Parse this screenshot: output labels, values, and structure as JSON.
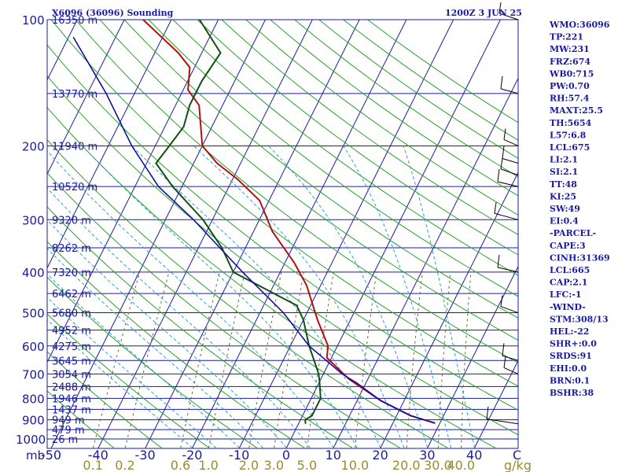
{
  "header": {
    "station": "X6096 (36096) Sounding",
    "time": "1200Z  3 JUN 25"
  },
  "indices": [
    "WMO:36096",
    "TP:221",
    "MW:231",
    "FRZ:674",
    "WB0:715",
    "PW:0.70",
    "RH:57.4",
    "MAXT:25.5",
    "TH:5654",
    "L57:6.8",
    "LCL:675",
    "LI:2.1",
    "SI:2.1",
    "TT:48",
    "KI:25",
    "SW:49",
    "EI:0.4",
    "-PARCEL-",
    "CAPE:3",
    "CINH:31369",
    "LCL:665",
    "CAP:2.1",
    "LFC:-1",
    "-WIND-",
    "STM:308/13",
    "HEL:-22",
    "SHR+:0.0",
    "SRDS:91",
    "EHI:0.0",
    "BRN:0.1",
    "BSHR:38"
  ],
  "colors": {
    "frame": "#1a1aa0",
    "isobar": "#1a1aa0",
    "isotherm": "#1a1aa0",
    "dry_adiabat": "#2aa02a",
    "moist_adiabat": "#2aa0d0",
    "mixing_ratio": "#6a6a30",
    "temperature": "#b01010",
    "dewpoint": "#105010",
    "parcel": "#1010a0",
    "wind": "#000000",
    "wlabel": "#9a8a30"
  },
  "chart_data": {
    "type": "line",
    "title": "X6096 (36096) Sounding",
    "subtitle": "1200Z  3 JUN 25",
    "y_scale": "log-pressure",
    "ylim": [
      1000,
      100
    ],
    "xlim": [
      -50,
      50
    ],
    "pressure_ticks": [
      100,
      200,
      300,
      400,
      500,
      600,
      700,
      800,
      900,
      1000
    ],
    "pressure_unit": "mb",
    "temp_ticks": [
      -50,
      -40,
      -30,
      -20,
      -10,
      0,
      10,
      20,
      30,
      40
    ],
    "temp_unit": "C",
    "mixing_ratio_ticks": [
      "0.1",
      "0.2",
      "0.6",
      "1.0",
      "2.0",
      "3.0",
      "5.0",
      "10.0",
      "20.0",
      "30.0",
      "40.0"
    ],
    "mixing_ratio_unit": "g/kg",
    "height_labels": [
      {
        "p": 100,
        "label": "16350 m"
      },
      {
        "p": 150,
        "label": "13770 m"
      },
      {
        "p": 200,
        "label": "11940 m"
      },
      {
        "p": 250,
        "label": "10520 m"
      },
      {
        "p": 300,
        "label": "9320 m"
      },
      {
        "p": 350,
        "label": "8262 m"
      },
      {
        "p": 400,
        "label": "7320 m"
      },
      {
        "p": 450,
        "label": "6462 m"
      },
      {
        "p": 500,
        "label": "5680 m"
      },
      {
        "p": 550,
        "label": "4952 m"
      },
      {
        "p": 600,
        "label": "4275 m"
      },
      {
        "p": 650,
        "label": "3645 m"
      },
      {
        "p": 700,
        "label": "3054 m"
      },
      {
        "p": 750,
        "label": "2488 m"
      },
      {
        "p": 800,
        "label": "1946 m"
      },
      {
        "p": 850,
        "label": "1437 m"
      },
      {
        "p": 900,
        "label": "949 m"
      },
      {
        "p": 950,
        "label": "479 m"
      },
      {
        "p": 1000,
        "label": "26 m"
      }
    ],
    "series": [
      {
        "key": "temperature",
        "points": [
          [
            917,
            29
          ],
          [
            880,
            23
          ],
          [
            810,
            15
          ],
          [
            720,
            6
          ],
          [
            640,
            -1
          ],
          [
            600,
            -2
          ],
          [
            520,
            -7
          ],
          [
            430,
            -13
          ],
          [
            380,
            -18
          ],
          [
            320,
            -26
          ],
          [
            270,
            -32
          ],
          [
            240,
            -39
          ],
          [
            220,
            -45
          ],
          [
            200,
            -50
          ],
          [
            160,
            -55
          ],
          [
            147,
            -59
          ],
          [
            130,
            -61
          ],
          [
            120,
            -65
          ],
          [
            100,
            -76
          ]
        ]
      },
      {
        "key": "dewpoint",
        "points": [
          [
            920,
            1.5
          ],
          [
            900,
            1
          ],
          [
            880,
            2
          ],
          [
            800,
            2
          ],
          [
            730,
            0
          ],
          [
            700,
            -1
          ],
          [
            600,
            -6
          ],
          [
            520,
            -10
          ],
          [
            480,
            -13
          ],
          [
            460,
            -17
          ],
          [
            400,
            -30
          ],
          [
            350,
            -35
          ],
          [
            300,
            -42
          ],
          [
            250,
            -52
          ],
          [
            220,
            -58
          ],
          [
            200,
            -57
          ],
          [
            180,
            -56
          ],
          [
            160,
            -57
          ],
          [
            140,
            -57
          ],
          [
            120,
            -56
          ],
          [
            100,
            -64
          ]
        ]
      },
      {
        "key": "parcel",
        "points": [
          [
            917,
            29
          ],
          [
            880,
            23
          ],
          [
            810,
            15
          ],
          [
            735,
            8
          ],
          [
            700,
            4
          ],
          [
            600,
            -6
          ],
          [
            500,
            -15
          ],
          [
            400,
            -28
          ],
          [
            300,
            -44
          ],
          [
            250,
            -55
          ],
          [
            200,
            -65
          ],
          [
            150,
            -76
          ],
          [
            110,
            -89
          ]
        ]
      }
    ],
    "wind_barbs_p": [
      920,
      700,
      650,
      500,
      400,
      300,
      250,
      235,
      220,
      200,
      150,
      100
    ]
  }
}
